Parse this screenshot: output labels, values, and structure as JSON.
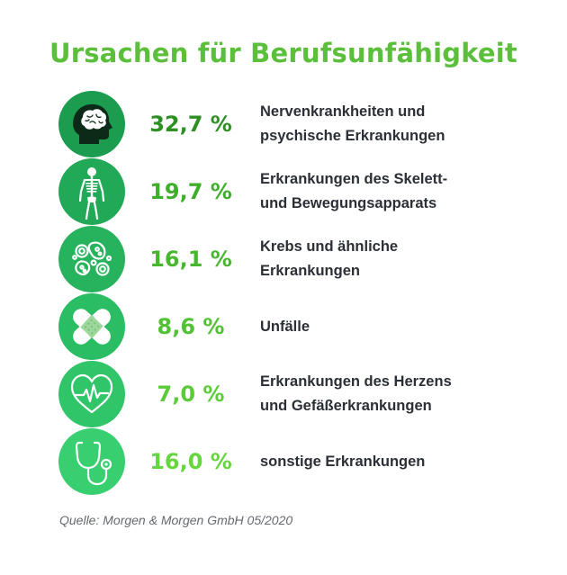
{
  "title": "Ursachen für Berufsunfähigkeit",
  "source": "Quelle: Morgen & Morgen GmbH 05/2020",
  "chart_data": {
    "type": "table",
    "title": "Ursachen für Berufsunfähigkeit",
    "rows": [
      {
        "icon": "brain-head-icon",
        "value": 32.7,
        "value_label": "32,7 %",
        "label_lines": [
          "Nervenkrankheiten und",
          "psychische Erkrankungen"
        ],
        "color": "#2e8f25",
        "circle_color": "#1b9c4f"
      },
      {
        "icon": "skeleton-icon",
        "value": 19.7,
        "value_label": "19,7 %",
        "label_lines": [
          "Erkrankungen des Skelett-",
          "und Bewegungsapparats"
        ],
        "color": "#3fae2b",
        "circle_color": "#22a957"
      },
      {
        "icon": "cells-icon",
        "value": 16.1,
        "value_label": "16,1 %",
        "label_lines": [
          "Krebs und ähnliche",
          "Erkrankungen"
        ],
        "color": "#49b62f",
        "circle_color": "#27b35d"
      },
      {
        "icon": "bandage-icon",
        "value": 8.6,
        "value_label": "8,6 %",
        "label_lines": [
          "Unfälle"
        ],
        "color": "#52c234",
        "circle_color": "#2bbd63"
      },
      {
        "icon": "heart-pulse-icon",
        "value": 7.0,
        "value_label": "7,0 %",
        "label_lines": [
          "Erkrankungen des Herzens",
          "und Gefäßerkrankungen"
        ],
        "color": "#5ccb3a",
        "circle_color": "#31c569"
      },
      {
        "icon": "stethoscope-icon",
        "value": 16.0,
        "value_label": "16,0 %",
        "label_lines": [
          "sonstige Erkrankungen"
        ],
        "color": "#66d63f",
        "circle_color": "#37cf6f"
      }
    ]
  }
}
